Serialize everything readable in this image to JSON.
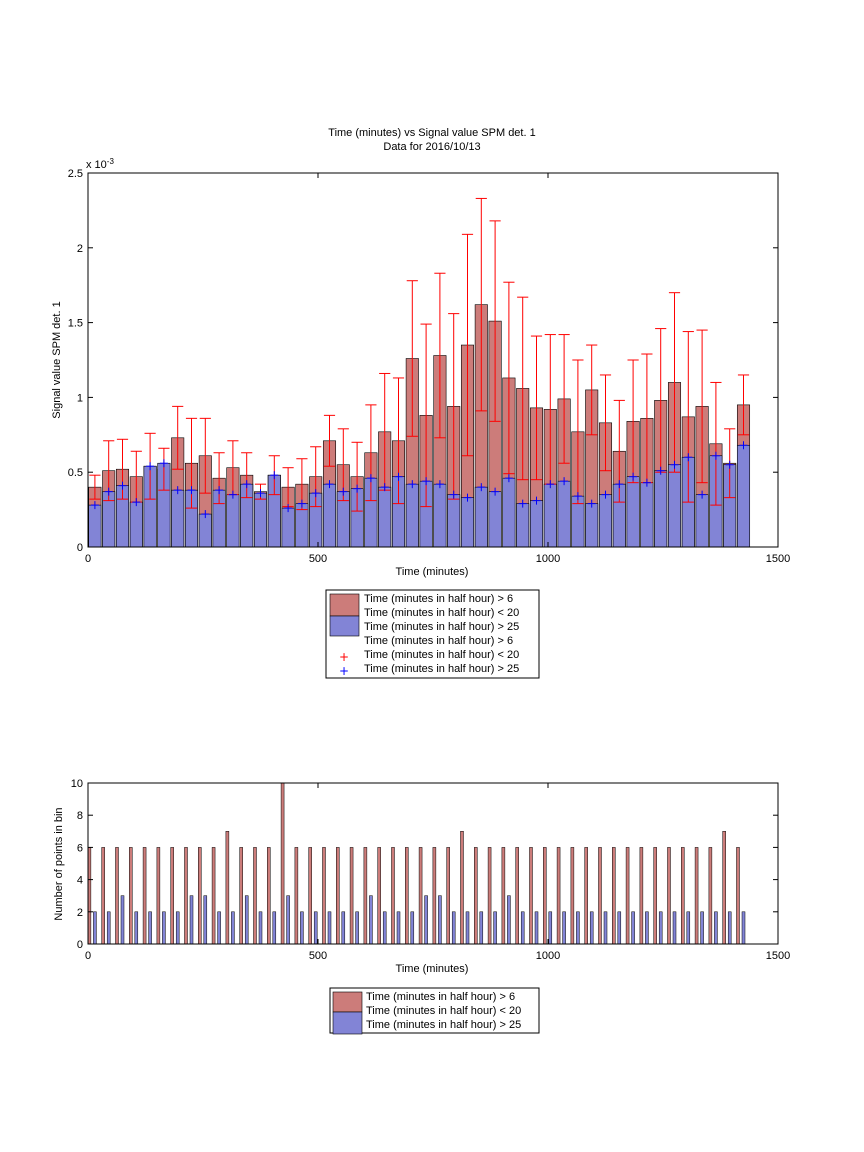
{
  "chart_data": [
    {
      "type": "bar",
      "title": "Time (minutes) vs Signal value SPM det. 1",
      "subtitle": "Data for 2016/10/13",
      "xlabel": "Time (minutes)",
      "ylabel": "Signal value SPM det. 1",
      "y_exponent": "x 10",
      "y_exponent_power": "-3",
      "xlim": [
        0,
        1500
      ],
      "ylim": [
        0,
        2.5
      ],
      "x_ticks": [
        "0",
        "500",
        "1000",
        "1500"
      ],
      "y_ticks": [
        "0",
        "0.5",
        "1",
        "1.5",
        "2",
        "2.5"
      ],
      "grid": false,
      "legend_position": "below",
      "legend": [
        "Time (minutes in half hour) > 6",
        "Time (minutes in half hour) < 20",
        "Time (minutes in half hour) > 25",
        "Time (minutes in half hour) > 6",
        "Time (minutes in half hour) < 20",
        "Time (minutes in half hour) > 25"
      ],
      "x": [
        15,
        45,
        75,
        105,
        135,
        165,
        195,
        225,
        255,
        285,
        315,
        345,
        375,
        405,
        435,
        465,
        495,
        525,
        555,
        585,
        615,
        645,
        675,
        705,
        735,
        765,
        795,
        825,
        855,
        885,
        915,
        945,
        975,
        1005,
        1035,
        1065,
        1095,
        1125,
        1155,
        1185,
        1215,
        1245,
        1275,
        1305,
        1335,
        1365,
        1395,
        1425
      ],
      "series": [
        {
          "color": "#cc7c7a",
          "err_color": "#ff0000",
          "values": [
            0.4,
            0.51,
            0.52,
            0.47,
            0.54,
            0.52,
            0.73,
            0.56,
            0.61,
            0.46,
            0.53,
            0.48,
            0.37,
            0.48,
            0.4,
            0.42,
            0.47,
            0.71,
            0.55,
            0.47,
            0.63,
            0.77,
            0.71,
            1.26,
            0.88,
            1.28,
            0.94,
            1.35,
            1.62,
            1.51,
            1.13,
            1.06,
            0.93,
            0.92,
            0.99,
            0.77,
            1.05,
            0.83,
            0.64,
            0.84,
            0.86,
            0.98,
            1.1,
            0.87,
            0.94,
            0.69,
            0.56,
            0.95
          ],
          "err": [
            0.08,
            0.2,
            0.2,
            0.17,
            0.22,
            0.14,
            0.21,
            0.3,
            0.25,
            0.17,
            0.18,
            0.15,
            0.05,
            0.13,
            0.13,
            0.17,
            0.2,
            0.17,
            0.24,
            0.23,
            0.32,
            0.39,
            0.42,
            0.52,
            0.61,
            0.55,
            0.62,
            0.74,
            0.71,
            0.67,
            0.64,
            0.61,
            0.48,
            0.5,
            0.43,
            0.48,
            0.3,
            0.32,
            0.34,
            0.41,
            0.43,
            0.48,
            0.6,
            0.57,
            0.51,
            0.41,
            0.23,
            0.2
          ]
        },
        {
          "color": "#8284d6",
          "err_color": "#0000ff",
          "values": [
            0.28,
            0.37,
            0.41,
            0.3,
            0.54,
            0.56,
            0.38,
            0.38,
            0.22,
            0.38,
            0.35,
            0.42,
            0.36,
            0.48,
            0.26,
            0.29,
            0.36,
            0.42,
            0.37,
            0.39,
            0.46,
            0.4,
            0.47,
            0.42,
            0.44,
            0.42,
            0.35,
            0.33,
            0.4,
            0.37,
            0.46,
            0.29,
            0.31,
            0.42,
            0.44,
            0.34,
            0.29,
            0.35,
            0.42,
            0.47,
            0.43,
            0.51,
            0.55,
            0.6,
            0.35,
            0.61,
            0.55,
            0.68
          ]
        }
      ]
    },
    {
      "type": "bar",
      "xlabel": "Time (minutes)",
      "ylabel": "Number of points in bin",
      "xlim": [
        0,
        1500
      ],
      "ylim": [
        0,
        10
      ],
      "x_ticks": [
        "0",
        "500",
        "1000",
        "1500"
      ],
      "y_ticks": [
        "0",
        "2",
        "4",
        "6",
        "8",
        "10"
      ],
      "grid": false,
      "legend_position": "below",
      "legend": [
        "Time (minutes in half hour) > 6",
        "Time (minutes in half hour) < 20",
        "Time (minutes in half hour) > 25"
      ],
      "x": [
        15,
        45,
        75,
        105,
        135,
        165,
        195,
        225,
        255,
        285,
        315,
        345,
        375,
        405,
        435,
        465,
        495,
        525,
        555,
        585,
        615,
        645,
        675,
        705,
        735,
        765,
        795,
        825,
        855,
        885,
        915,
        945,
        975,
        1005,
        1035,
        1065,
        1095,
        1125,
        1155,
        1185,
        1215,
        1245,
        1275,
        1305,
        1335,
        1365,
        1395,
        1425
      ],
      "series": [
        {
          "color": "#cc7c7a",
          "values": [
            6,
            6,
            6,
            6,
            6,
            6,
            6,
            6,
            6,
            6,
            7,
            6,
            6,
            6,
            10,
            6,
            6,
            6,
            6,
            6,
            6,
            6,
            6,
            6,
            6,
            6,
            6,
            7,
            6,
            6,
            6,
            6,
            6,
            6,
            6,
            6,
            6,
            6,
            6,
            6,
            6,
            6,
            6,
            6,
            6,
            6,
            7,
            6
          ]
        },
        {
          "color": "#8284d6",
          "values": [
            2,
            2,
            3,
            2,
            2,
            2,
            2,
            3,
            3,
            2,
            2,
            3,
            2,
            2,
            3,
            2,
            2,
            2,
            2,
            2,
            3,
            2,
            2,
            2,
            3,
            3,
            2,
            2,
            2,
            2,
            3,
            2,
            2,
            2,
            2,
            2,
            2,
            2,
            2,
            2,
            2,
            2,
            2,
            2,
            2,
            2,
            2,
            2
          ]
        }
      ]
    }
  ]
}
